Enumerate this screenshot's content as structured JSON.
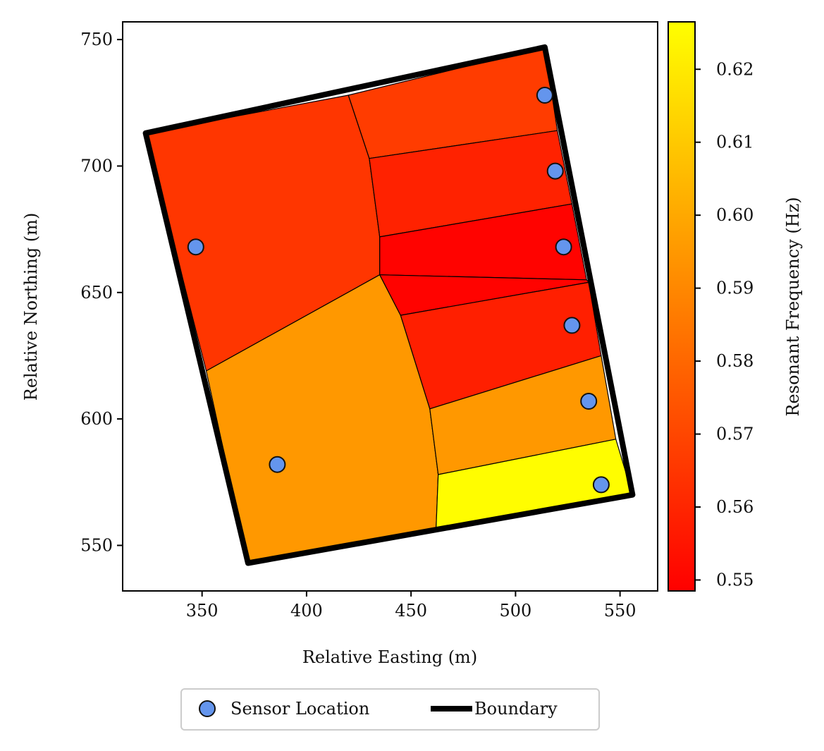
{
  "chart_data": {
    "type": "choropleth-map",
    "xlabel": "Relative Easting (m)",
    "ylabel": "Relative Northing (m)",
    "xlim": [
      312,
      568
    ],
    "ylim": [
      532,
      757
    ],
    "x_ticks": [
      350,
      400,
      450,
      500,
      550
    ],
    "y_ticks": [
      550,
      600,
      650,
      700,
      750
    ],
    "colorbar": {
      "label": "Resonant Frequency (Hz)",
      "range": [
        0.5485,
        0.6265
      ],
      "ticks": [
        "0.55",
        "0.56",
        "0.57",
        "0.58",
        "0.59",
        "0.60",
        "0.61",
        "0.62"
      ],
      "tick_values": [
        0.55,
        0.56,
        0.57,
        0.58,
        0.59,
        0.6,
        0.61,
        0.62
      ],
      "colormap": "autumn"
    },
    "boundary": [
      [
        323,
        713
      ],
      [
        514,
        747
      ],
      [
        556,
        570
      ],
      [
        372,
        543
      ],
      [
        323,
        713
      ]
    ],
    "cells": [
      {
        "name": "northwest",
        "value": 0.565,
        "polygon": [
          [
            323,
            713
          ],
          [
            420,
            728
          ],
          [
            430,
            703
          ],
          [
            435,
            672
          ],
          [
            435,
            657
          ],
          [
            352,
            619
          ]
        ]
      },
      {
        "name": "southwest",
        "value": 0.595,
        "polygon": [
          [
            352,
            619
          ],
          [
            435,
            657
          ],
          [
            445,
            641
          ],
          [
            459,
            604
          ],
          [
            463,
            578
          ],
          [
            462,
            557
          ],
          [
            372,
            543
          ]
        ]
      },
      {
        "name": "north-strip-1",
        "value": 0.567,
        "polygon": [
          [
            420,
            728
          ],
          [
            514,
            747
          ],
          [
            520,
            714
          ],
          [
            430,
            703
          ]
        ]
      },
      {
        "name": "north-strip-2",
        "value": 0.559,
        "polygon": [
          [
            430,
            703
          ],
          [
            520,
            714
          ],
          [
            527,
            685
          ],
          [
            435,
            672
          ]
        ]
      },
      {
        "name": "north-strip-3",
        "value": 0.5495,
        "polygon": [
          [
            435,
            672
          ],
          [
            527,
            685
          ],
          [
            534,
            655
          ],
          [
            435,
            657
          ]
        ]
      },
      {
        "name": "middle-strip",
        "value": 0.5495,
        "polygon": [
          [
            435,
            657
          ],
          [
            534,
            655
          ],
          [
            535,
            654
          ],
          [
            445,
            641
          ]
        ]
      },
      {
        "name": "south-strip-1",
        "value": 0.558,
        "polygon": [
          [
            445,
            641
          ],
          [
            535,
            654
          ],
          [
            541,
            625
          ],
          [
            459,
            604
          ]
        ]
      },
      {
        "name": "south-strip-2",
        "value": 0.595,
        "polygon": [
          [
            459,
            604
          ],
          [
            541,
            625
          ],
          [
            548,
            592
          ],
          [
            463,
            578
          ]
        ]
      },
      {
        "name": "south-strip-3",
        "value": 0.626,
        "polygon": [
          [
            463,
            578
          ],
          [
            548,
            592
          ],
          [
            556,
            570
          ],
          [
            462,
            557
          ]
        ]
      }
    ],
    "sensors": [
      {
        "x": 514,
        "y": 728
      },
      {
        "x": 519,
        "y": 698
      },
      {
        "x": 523,
        "y": 668
      },
      {
        "x": 527,
        "y": 637
      },
      {
        "x": 535,
        "y": 607
      },
      {
        "x": 541,
        "y": 574
      },
      {
        "x": 347,
        "y": 668
      },
      {
        "x": 386,
        "y": 582
      }
    ],
    "legend": {
      "position": "bottom-center",
      "entries": [
        {
          "label": "Sensor Location",
          "marker": "circle"
        },
        {
          "label": "Boundary",
          "marker": "thick-line"
        }
      ]
    },
    "colors": {
      "sensor_fill": "#6495ed",
      "sensor_edge": "#111111",
      "boundary": "#000000",
      "cell_edge": "#000000"
    }
  }
}
